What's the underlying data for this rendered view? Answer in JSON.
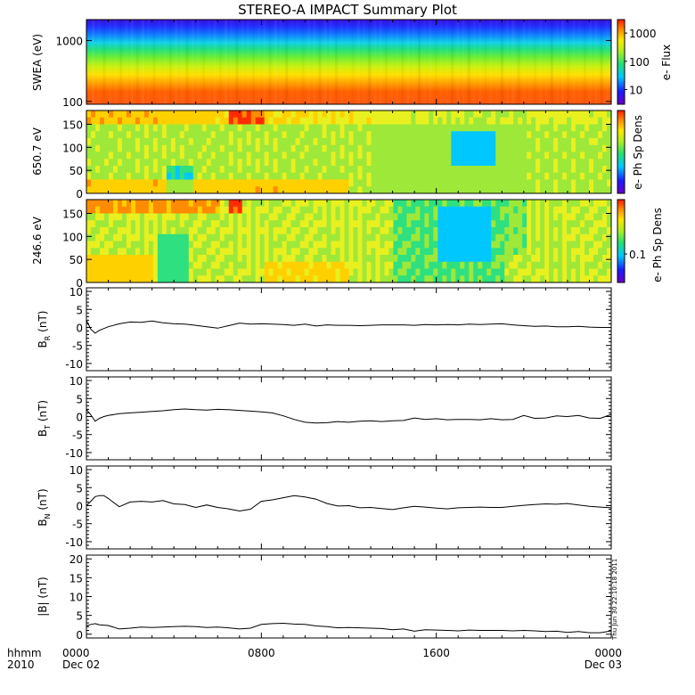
{
  "title": "STEREO-A IMPACT Summary Plot",
  "timestamp_stamp": "Thu Jun 30 22:10:18 2011",
  "time_axis": {
    "corner_labels": [
      "hhmm",
      "2010"
    ],
    "ticks": [
      {
        "label": "0000",
        "sub": "Dec 02",
        "hours": 0
      },
      {
        "label": "0800",
        "sub": "",
        "hours": 8
      },
      {
        "label": "1600",
        "sub": "",
        "hours": 16
      },
      {
        "label": "0000",
        "sub": "Dec 03",
        "hours": 24
      }
    ]
  },
  "chart_data": [
    {
      "type": "heatmap",
      "name": "swea",
      "ylabel": "SWEA (eV)",
      "yscale": "log",
      "ylim": [
        90,
        2200
      ],
      "ytick_labels": [
        "1000",
        "100"
      ],
      "ytick_values": [
        1000,
        100
      ],
      "colorbar_label": "e- Flux",
      "colorbar_scale": "log",
      "colorbar_ticks": [
        "1000",
        "100",
        "10"
      ],
      "colorbar_tick_values": [
        1000,
        100,
        10
      ],
      "colorbar_range": [
        3,
        3000
      ],
      "description_rows_by_energy": [
        {
          "energy_eV": 2000,
          "level": "blue-violet"
        },
        {
          "energy_eV": 1000,
          "level": "blue"
        },
        {
          "energy_eV": 600,
          "level": "cyan-green"
        },
        {
          "energy_eV": 350,
          "level": "yellow-green"
        },
        {
          "energy_eV": 200,
          "level": "yellow-orange"
        },
        {
          "energy_eV": 120,
          "level": "red-orange"
        }
      ]
    },
    {
      "type": "heatmap",
      "name": "pad_650",
      "ylabel": "650.7 eV",
      "ylim": [
        0,
        180
      ],
      "ytick_labels": [
        "150",
        "100",
        "50",
        "0"
      ],
      "ytick_values": [
        150,
        100,
        50,
        0
      ],
      "colorbar_label": "e- Ph Sp Dens",
      "colorbar_ticks": [],
      "colorbar_tick_values": []
    },
    {
      "type": "heatmap",
      "name": "pad_246",
      "ylabel": "246.6 eV",
      "ylim": [
        0,
        180
      ],
      "ytick_labels": [
        "150",
        "100",
        "50",
        "0"
      ],
      "ytick_values": [
        150,
        100,
        50,
        0
      ],
      "colorbar_label": "e- Ph Sp Dens",
      "colorbar_ticks": [
        "0.1"
      ],
      "colorbar_tick_values": [
        0.1
      ]
    },
    {
      "type": "line",
      "name": "br",
      "ylabel_main": "B",
      "ylabel_sub": "R",
      "ylabel_unit": "(nT)",
      "ylim": [
        -12,
        11
      ],
      "ytick_labels": [
        "10",
        "5",
        "0",
        "-5",
        "-10"
      ],
      "ytick_values": [
        10,
        5,
        0,
        -5,
        -10
      ],
      "x_hours": [
        0,
        0.2,
        0.4,
        0.6,
        0.8,
        1.0,
        1.5,
        2,
        2.5,
        3,
        3.5,
        4,
        4.5,
        5,
        5.5,
        6,
        6.5,
        7,
        7.5,
        8,
        8.5,
        9,
        9.5,
        10,
        10.5,
        11,
        11.5,
        12,
        12.5,
        13,
        13.5,
        14,
        14.5,
        15,
        15.5,
        16,
        16.5,
        17,
        17.5,
        18,
        18.5,
        19,
        19.5,
        20,
        20.5,
        21,
        21.5,
        22,
        22.5,
        23,
        23.5,
        24
      ],
      "values": [
        2.0,
        -0.5,
        -1.6,
        -0.8,
        -0.3,
        0.2,
        1.0,
        1.5,
        1.4,
        1.8,
        1.3,
        1.0,
        0.9,
        0.6,
        0.2,
        -0.2,
        0.5,
        1.2,
        0.9,
        1.0,
        0.9,
        0.8,
        0.6,
        0.9,
        0.4,
        0.7,
        0.6,
        0.6,
        0.5,
        0.6,
        0.7,
        0.7,
        0.7,
        0.6,
        0.8,
        0.7,
        0.8,
        0.7,
        0.9,
        0.8,
        0.9,
        1.0,
        0.7,
        0.5,
        0.3,
        0.4,
        0.2,
        0.2,
        0.3,
        0.1,
        0.0,
        0.0
      ]
    },
    {
      "type": "line",
      "name": "bt",
      "ylabel_main": "B",
      "ylabel_sub": "T",
      "ylabel_unit": "(nT)",
      "ylim": [
        -12,
        11
      ],
      "ytick_labels": [
        "10",
        "5",
        "0",
        "-5",
        "-10"
      ],
      "ytick_values": [
        10,
        5,
        0,
        -5,
        -10
      ],
      "x_hours": [
        0,
        0.2,
        0.4,
        0.6,
        0.8,
        1.0,
        1.5,
        2,
        2.5,
        3,
        3.5,
        4,
        4.5,
        5,
        5.5,
        6,
        6.5,
        7,
        7.5,
        8,
        8.5,
        9,
        9.5,
        10,
        10.5,
        11,
        11.5,
        12,
        12.5,
        13,
        13.5,
        14,
        14.5,
        15,
        15.5,
        16,
        16.5,
        17,
        17.5,
        18,
        18.5,
        19,
        19.5,
        20,
        20.5,
        21,
        21.5,
        22,
        22.5,
        23,
        23.5,
        24
      ],
      "values": [
        2.0,
        0.5,
        -1.3,
        -0.5,
        0.0,
        0.3,
        0.8,
        1.0,
        1.2,
        1.4,
        1.6,
        1.9,
        2.1,
        1.9,
        1.8,
        2.0,
        1.9,
        1.7,
        1.5,
        1.3,
        1.0,
        0.2,
        -0.8,
        -1.6,
        -1.8,
        -1.7,
        -1.4,
        -1.6,
        -1.3,
        -1.2,
        -1.4,
        -1.2,
        -1.1,
        -0.4,
        -0.8,
        -0.6,
        -0.9,
        -0.8,
        -0.8,
        -0.9,
        -0.6,
        -0.9,
        -0.8,
        0.3,
        -0.5,
        -0.4,
        0.2,
        0.0,
        0.3,
        -0.4,
        -0.5,
        0.6
      ]
    },
    {
      "type": "line",
      "name": "bn",
      "ylabel_main": "B",
      "ylabel_sub": "N",
      "ylabel_unit": "(nT)",
      "ylim": [
        -12,
        11
      ],
      "ytick_labels": [
        "10",
        "5",
        "0",
        "-5",
        "-10"
      ],
      "ytick_values": [
        10,
        5,
        0,
        -5,
        -10
      ],
      "x_hours": [
        0,
        0.2,
        0.4,
        0.6,
        0.8,
        1.0,
        1.5,
        2,
        2.5,
        3,
        3.5,
        4,
        4.5,
        5,
        5.5,
        6,
        6.5,
        7,
        7.5,
        8,
        8.5,
        9,
        9.5,
        10,
        10.5,
        11,
        11.5,
        12,
        12.5,
        13,
        13.5,
        14,
        14.5,
        15,
        15.5,
        16,
        16.5,
        17,
        17.5,
        18,
        18.5,
        19,
        19.5,
        20,
        20.5,
        21,
        21.5,
        22,
        22.5,
        23,
        23.5,
        24
      ],
      "values": [
        0.0,
        1.2,
        2.5,
        2.8,
        2.8,
        2.0,
        -0.3,
        1.0,
        1.2,
        1.0,
        1.4,
        0.5,
        0.3,
        -0.5,
        0.2,
        -0.5,
        -0.9,
        -1.5,
        -1.0,
        1.2,
        1.6,
        2.2,
        2.8,
        2.4,
        1.8,
        0.6,
        -0.1,
        0.0,
        -0.6,
        -0.5,
        -0.8,
        -1.1,
        -0.6,
        -0.2,
        -0.4,
        -0.7,
        -0.9,
        -0.6,
        -0.5,
        -0.4,
        -0.5,
        -0.5,
        -0.2,
        0.1,
        0.3,
        0.5,
        0.4,
        0.6,
        0.2,
        -0.2,
        -0.4,
        -0.6
      ]
    },
    {
      "type": "line",
      "name": "bmag",
      "ylabel_main": "|B|",
      "ylabel_sub": "",
      "ylabel_unit": "(nT)",
      "ylim": [
        -1,
        21
      ],
      "ytick_labels": [
        "20",
        "15",
        "10",
        "5",
        "0"
      ],
      "ytick_values": [
        20,
        15,
        10,
        5,
        0
      ],
      "x_hours": [
        0,
        0.2,
        0.4,
        0.6,
        0.8,
        1.0,
        1.5,
        2,
        2.5,
        3,
        3.5,
        4,
        4.5,
        5,
        5.5,
        6,
        6.5,
        7,
        7.5,
        8,
        8.5,
        9,
        9.5,
        10,
        10.5,
        11,
        11.5,
        12,
        12.5,
        13,
        13.5,
        14,
        14.5,
        15,
        15.5,
        16,
        16.5,
        17,
        17.5,
        18,
        18.5,
        19,
        19.5,
        20,
        20.5,
        21,
        21.5,
        22,
        22.5,
        23,
        23.5,
        24
      ],
      "values": [
        2.2,
        2.6,
        2.8,
        2.5,
        2.4,
        2.3,
        1.4,
        1.6,
        1.9,
        1.8,
        1.9,
        2.0,
        2.1,
        2.0,
        1.8,
        1.9,
        1.7,
        1.4,
        1.6,
        2.6,
        2.8,
        2.9,
        2.7,
        2.6,
        2.2,
        2.0,
        1.7,
        1.8,
        1.7,
        1.6,
        1.5,
        1.2,
        1.4,
        0.8,
        1.2,
        1.1,
        1.0,
        0.9,
        1.1,
        1.0,
        1.0,
        1.0,
        0.9,
        1.0,
        0.9,
        0.7,
        0.8,
        0.5,
        0.7,
        0.4,
        0.4,
        0.9
      ]
    }
  ]
}
